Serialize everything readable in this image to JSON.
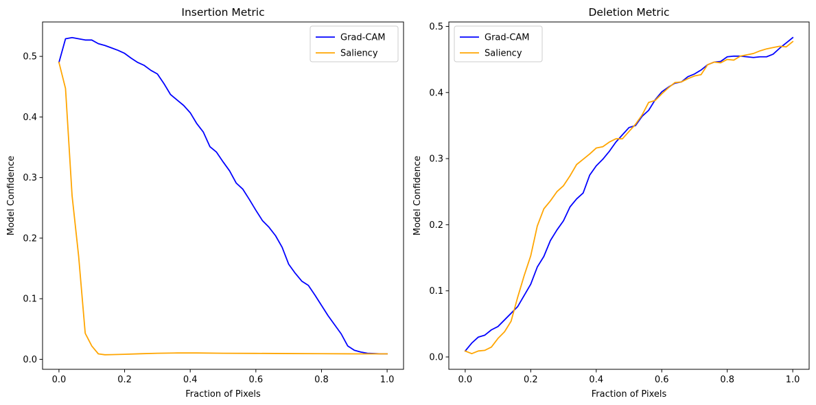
{
  "chart_data": [
    {
      "type": "line",
      "title": "Insertion Metric",
      "xlabel": "Fraction of Pixels",
      "ylabel": "Model Confidence",
      "xlim": [
        -0.05,
        1.05
      ],
      "ylim": [
        -0.0165,
        0.5568
      ],
      "xticks": [
        0.0,
        0.2,
        0.4,
        0.6,
        0.8,
        1.0
      ],
      "xtick_labels": [
        "0.0",
        "0.2",
        "0.4",
        "0.6",
        "0.8",
        "1.0"
      ],
      "yticks": [
        0.0,
        0.1,
        0.2,
        0.3,
        0.4,
        0.5
      ],
      "ytick_labels": [
        "0.0",
        "0.1",
        "0.2",
        "0.3",
        "0.4",
        "0.5"
      ],
      "grid": false,
      "legend_position": "upper right",
      "series": [
        {
          "name": "Grad-CAM",
          "color": "#0000ff",
          "x": [
            0.0,
            0.02,
            0.04,
            0.06,
            0.08,
            0.1,
            0.12,
            0.14,
            0.16,
            0.18,
            0.2,
            0.22,
            0.24,
            0.26,
            0.28,
            0.3,
            0.32,
            0.34,
            0.36,
            0.38,
            0.4,
            0.42,
            0.44,
            0.46,
            0.48,
            0.5,
            0.52,
            0.54,
            0.56,
            0.58,
            0.6,
            0.62,
            0.64,
            0.66,
            0.68,
            0.7,
            0.72,
            0.74,
            0.76,
            0.78,
            0.8,
            0.82,
            0.84,
            0.86,
            0.88,
            0.9,
            0.92,
            0.94,
            0.96,
            0.98,
            1.0
          ],
          "y": [
            0.49,
            0.529,
            0.531,
            0.529,
            0.527,
            0.527,
            0.521,
            0.518,
            0.514,
            0.51,
            0.505,
            0.497,
            0.49,
            0.485,
            0.477,
            0.471,
            0.455,
            0.437,
            0.428,
            0.419,
            0.407,
            0.389,
            0.375,
            0.351,
            0.342,
            0.326,
            0.311,
            0.291,
            0.281,
            0.264,
            0.246,
            0.229,
            0.218,
            0.204,
            0.185,
            0.157,
            0.142,
            0.129,
            0.122,
            0.106,
            0.089,
            0.072,
            0.057,
            0.042,
            0.022,
            0.015,
            0.012,
            0.01,
            0.0095,
            0.009,
            0.009
          ]
        },
        {
          "name": "Saliency",
          "color": "#ffa500",
          "x": [
            0.0,
            0.02,
            0.04,
            0.06,
            0.08,
            0.1,
            0.12,
            0.14,
            0.16,
            0.2,
            0.25,
            0.3,
            0.36,
            0.42,
            0.5,
            0.6,
            0.7,
            0.8,
            0.9,
            1.0
          ],
          "y": [
            0.49,
            0.447,
            0.27,
            0.17,
            0.043,
            0.022,
            0.009,
            0.0075,
            0.0077,
            0.0083,
            0.0092,
            0.01,
            0.0105,
            0.0105,
            0.01,
            0.0098,
            0.0095,
            0.0093,
            0.009,
            0.009
          ]
        }
      ]
    },
    {
      "type": "line",
      "title": "Deletion Metric",
      "xlabel": "Fraction of Pixels",
      "ylabel": "Model Confidence",
      "xlim": [
        -0.05,
        1.05
      ],
      "ylim": [
        -0.0187,
        0.5067
      ],
      "xticks": [
        0.0,
        0.2,
        0.4,
        0.6,
        0.8,
        1.0
      ],
      "xtick_labels": [
        "0.0",
        "0.2",
        "0.4",
        "0.6",
        "0.8",
        "1.0"
      ],
      "yticks": [
        0.0,
        0.1,
        0.2,
        0.3,
        0.4,
        0.5
      ],
      "ytick_labels": [
        "0.0",
        "0.1",
        "0.2",
        "0.3",
        "0.4",
        "0.5"
      ],
      "grid": false,
      "legend_position": "upper left",
      "series": [
        {
          "name": "Grad-CAM",
          "color": "#0000ff",
          "x": [
            0.0,
            0.02,
            0.04,
            0.06,
            0.08,
            0.1,
            0.12,
            0.14,
            0.16,
            0.18,
            0.2,
            0.22,
            0.24,
            0.26,
            0.28,
            0.3,
            0.32,
            0.34,
            0.36,
            0.38,
            0.4,
            0.42,
            0.44,
            0.46,
            0.48,
            0.5,
            0.52,
            0.54,
            0.56,
            0.58,
            0.6,
            0.62,
            0.64,
            0.66,
            0.68,
            0.7,
            0.72,
            0.74,
            0.76,
            0.78,
            0.8,
            0.82,
            0.84,
            0.86,
            0.88,
            0.9,
            0.92,
            0.94,
            0.96,
            0.98,
            1.0
          ],
          "y": [
            0.009,
            0.021,
            0.03,
            0.033,
            0.041,
            0.046,
            0.056,
            0.066,
            0.076,
            0.093,
            0.11,
            0.136,
            0.152,
            0.176,
            0.192,
            0.206,
            0.227,
            0.239,
            0.248,
            0.275,
            0.289,
            0.299,
            0.311,
            0.325,
            0.336,
            0.347,
            0.35,
            0.364,
            0.373,
            0.389,
            0.401,
            0.408,
            0.414,
            0.416,
            0.424,
            0.428,
            0.434,
            0.442,
            0.446,
            0.447,
            0.454,
            0.455,
            0.455,
            0.454,
            0.453,
            0.454,
            0.454,
            0.458,
            0.467,
            0.475,
            0.483
          ]
        },
        {
          "name": "Saliency",
          "color": "#ffa500",
          "x": [
            0.0,
            0.02,
            0.04,
            0.06,
            0.08,
            0.1,
            0.12,
            0.14,
            0.16,
            0.18,
            0.2,
            0.22,
            0.24,
            0.26,
            0.28,
            0.3,
            0.32,
            0.34,
            0.36,
            0.38,
            0.4,
            0.42,
            0.44,
            0.46,
            0.48,
            0.5,
            0.52,
            0.54,
            0.56,
            0.58,
            0.6,
            0.62,
            0.64,
            0.66,
            0.68,
            0.7,
            0.72,
            0.74,
            0.76,
            0.78,
            0.8,
            0.82,
            0.84,
            0.86,
            0.88,
            0.9,
            0.92,
            0.94,
            0.96,
            0.98,
            1.0
          ],
          "y": [
            0.009,
            0.005,
            0.009,
            0.01,
            0.015,
            0.028,
            0.038,
            0.054,
            0.09,
            0.123,
            0.153,
            0.198,
            0.224,
            0.236,
            0.25,
            0.259,
            0.274,
            0.291,
            0.299,
            0.307,
            0.316,
            0.318,
            0.325,
            0.33,
            0.33,
            0.341,
            0.352,
            0.366,
            0.385,
            0.388,
            0.398,
            0.407,
            0.415,
            0.416,
            0.421,
            0.425,
            0.427,
            0.442,
            0.446,
            0.445,
            0.45,
            0.449,
            0.455,
            0.457,
            0.459,
            0.463,
            0.466,
            0.468,
            0.47,
            0.469,
            0.477
          ]
        }
      ]
    }
  ]
}
